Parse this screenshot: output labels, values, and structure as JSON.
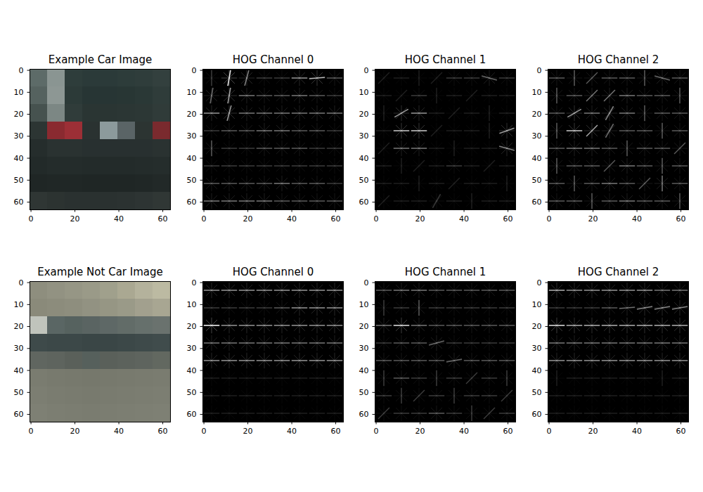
{
  "chart_data": [
    {
      "type": "image",
      "title": "Example Car Image",
      "xlim": [
        -0.5,
        63.5
      ],
      "ylim": [
        63.5,
        -0.5
      ],
      "xticks": [
        0,
        20,
        40,
        60
      ],
      "yticks": [
        0,
        10,
        20,
        30,
        40,
        50,
        60
      ],
      "cells": [
        [
          "#5d6b68",
          "#8a9592",
          "#2e3d3b",
          "#2b3a39",
          "#2b3a39",
          "#2d3c3a",
          "#2f3d3b",
          "#33403e"
        ],
        [
          "#55625f",
          "#8d9794",
          "#2c3a38",
          "#273534",
          "#273534",
          "#283634",
          "#2a3836",
          "#2f3c3a"
        ],
        [
          "#46524f",
          "#7c8784",
          "#303c3a",
          "#2a3533",
          "#2a3533",
          "#2b3634",
          "#2c3735",
          "#303b39"
        ],
        [
          "#2c3533",
          "#8a2a30",
          "#9c2f36",
          "#2a3231",
          "#8c9a9c",
          "#5a6466",
          "#2c3432",
          "#7a2a2e"
        ],
        [
          "#252d2c",
          "#2a3231",
          "#2a3231",
          "#283030",
          "#283030",
          "#283030",
          "#283030",
          "#2a3231"
        ],
        [
          "#222a29",
          "#242c2b",
          "#242c2b",
          "#232b2a",
          "#232b2a",
          "#232b2a",
          "#242c2b",
          "#252d2c"
        ],
        [
          "#1f2625",
          "#202726",
          "#202726",
          "#1f2625",
          "#1f2625",
          "#1f2625",
          "#202726",
          "#222928"
        ],
        [
          "#2f3634",
          "#2c3331",
          "#2a3130",
          "#2a3130",
          "#2a3130",
          "#2b3231",
          "#2d3433",
          "#303735"
        ]
      ]
    },
    {
      "type": "hog",
      "title": "HOG Channel 0",
      "xlim": [
        -0.5,
        63.5
      ],
      "ylim": [
        63.5,
        -0.5
      ],
      "xticks": [
        0,
        20,
        40,
        60
      ],
      "yticks": [
        0,
        10,
        20,
        30,
        40,
        50,
        60
      ],
      "magnitude": [
        [
          0.2,
          0.9,
          0.5,
          0.2,
          0.2,
          0.5,
          0.7,
          0.3
        ],
        [
          0.4,
          0.6,
          0.4,
          0.3,
          0.3,
          0.4,
          0.3,
          0.2
        ],
        [
          0.5,
          0.6,
          0.4,
          0.4,
          0.4,
          0.4,
          0.4,
          0.4
        ],
        [
          0.2,
          0.3,
          0.3,
          0.4,
          0.4,
          0.3,
          0.3,
          0.2
        ],
        [
          0.3,
          0.2,
          0.2,
          0.3,
          0.3,
          0.3,
          0.2,
          0.2
        ],
        [
          0.2,
          0.2,
          0.2,
          0.2,
          0.2,
          0.2,
          0.2,
          0.2
        ],
        [
          0.3,
          0.3,
          0.3,
          0.3,
          0.4,
          0.3,
          0.3,
          0.2
        ],
        [
          0.4,
          0.4,
          0.4,
          0.4,
          0.3,
          0.3,
          0.3,
          0.3
        ]
      ],
      "angle": [
        [
          90,
          80,
          75,
          0,
          0,
          0,
          5,
          0
        ],
        [
          80,
          80,
          0,
          0,
          0,
          0,
          0,
          0
        ],
        [
          0,
          75,
          0,
          0,
          0,
          0,
          0,
          0
        ],
        [
          0,
          0,
          0,
          0,
          0,
          0,
          0,
          0
        ],
        [
          90,
          0,
          0,
          0,
          0,
          0,
          0,
          0
        ],
        [
          0,
          0,
          0,
          0,
          0,
          0,
          0,
          0
        ],
        [
          0,
          0,
          0,
          0,
          0,
          0,
          0,
          0
        ],
        [
          0,
          0,
          0,
          0,
          0,
          0,
          0,
          0
        ]
      ]
    },
    {
      "type": "hog",
      "title": "HOG Channel 1",
      "xlim": [
        -0.5,
        63.5
      ],
      "ylim": [
        63.5,
        -0.5
      ],
      "xticks": [
        0,
        20,
        40,
        60
      ],
      "yticks": [
        0,
        10,
        20,
        30,
        40,
        50,
        60
      ],
      "magnitude": [
        [
          0.1,
          0.1,
          0.1,
          0.1,
          0.2,
          0.2,
          0.4,
          0.2
        ],
        [
          0.1,
          0.1,
          0.2,
          0.1,
          0.1,
          0.1,
          0.1,
          0.1
        ],
        [
          0.1,
          0.6,
          0.5,
          0.1,
          0.1,
          0.1,
          0.1,
          0.1
        ],
        [
          0.1,
          0.7,
          0.7,
          0.1,
          0.1,
          0.1,
          0.1,
          0.6
        ],
        [
          0.1,
          0.4,
          0.4,
          0.1,
          0.1,
          0.1,
          0.1,
          0.5
        ],
        [
          0.1,
          0.1,
          0.1,
          0.1,
          0.2,
          0.1,
          0.1,
          0.1
        ],
        [
          0.1,
          0.1,
          0.1,
          0.1,
          0.1,
          0.1,
          0.1,
          0.1
        ],
        [
          0.1,
          0.1,
          0.1,
          0.2,
          0.1,
          0.1,
          0.1,
          0.1
        ]
      ],
      "angle": [
        [
          45,
          0,
          90,
          45,
          0,
          0,
          -15,
          0
        ],
        [
          0,
          45,
          0,
          90,
          0,
          45,
          0,
          0
        ],
        [
          90,
          30,
          0,
          0,
          45,
          0,
          90,
          0
        ],
        [
          0,
          0,
          0,
          45,
          0,
          0,
          90,
          20
        ],
        [
          45,
          0,
          0,
          0,
          90,
          0,
          0,
          -15
        ],
        [
          0,
          90,
          45,
          0,
          0,
          0,
          45,
          0
        ],
        [
          0,
          0,
          90,
          0,
          45,
          0,
          0,
          90
        ],
        [
          45,
          0,
          0,
          60,
          0,
          90,
          0,
          0
        ]
      ]
    },
    {
      "type": "hog",
      "title": "HOG Channel 2",
      "xlim": [
        -0.5,
        63.5
      ],
      "ylim": [
        63.5,
        -0.5
      ],
      "xticks": [
        0,
        20,
        40,
        60
      ],
      "yticks": [
        0,
        10,
        20,
        30,
        40,
        50,
        60
      ],
      "magnitude": [
        [
          0.3,
          0.3,
          0.3,
          0.3,
          0.3,
          0.3,
          0.4,
          0.3
        ],
        [
          0.3,
          0.3,
          0.4,
          0.4,
          0.4,
          0.3,
          0.3,
          0.3
        ],
        [
          0.3,
          0.6,
          0.4,
          0.5,
          0.4,
          0.3,
          0.3,
          0.3
        ],
        [
          0.3,
          0.7,
          0.6,
          0.4,
          0.3,
          0.3,
          0.3,
          0.3
        ],
        [
          0.3,
          0.4,
          0.4,
          0.3,
          0.3,
          0.3,
          0.3,
          0.3
        ],
        [
          0.3,
          0.3,
          0.3,
          0.3,
          0.4,
          0.3,
          0.3,
          0.3
        ],
        [
          0.3,
          0.3,
          0.3,
          0.4,
          0.3,
          0.3,
          0.4,
          0.3
        ],
        [
          0.3,
          0.3,
          0.3,
          0.3,
          0.4,
          0.3,
          0.3,
          0.3
        ]
      ],
      "angle": [
        [
          0,
          90,
          45,
          0,
          0,
          90,
          -15,
          0
        ],
        [
          90,
          0,
          45,
          45,
          0,
          0,
          0,
          90
        ],
        [
          0,
          30,
          0,
          60,
          0,
          90,
          0,
          0
        ],
        [
          90,
          0,
          45,
          60,
          0,
          0,
          90,
          0
        ],
        [
          0,
          0,
          0,
          0,
          90,
          0,
          0,
          45
        ],
        [
          90,
          0,
          0,
          45,
          0,
          0,
          90,
          0
        ],
        [
          0,
          90,
          0,
          0,
          0,
          45,
          90,
          0
        ],
        [
          0,
          0,
          90,
          0,
          0,
          0,
          0,
          90
        ]
      ]
    },
    {
      "type": "image",
      "title": "Example Not Car Image",
      "xlim": [
        -0.5,
        63.5
      ],
      "ylim": [
        63.5,
        -0.5
      ],
      "xticks": [
        0,
        20,
        40,
        60
      ],
      "yticks": [
        0,
        10,
        20,
        30,
        40,
        50,
        60
      ],
      "cells": [
        [
          "#8e8e7e",
          "#929282",
          "#969685",
          "#9a9a88",
          "#a0a08c",
          "#aaa892",
          "#b4b29c",
          "#bcbaa2"
        ],
        [
          "#8a8a7a",
          "#8c8c7c",
          "#8e8e7e",
          "#929282",
          "#969684",
          "#9a9a88",
          "#a2a08e",
          "#a8a692"
        ],
        [
          "#c0c4bc",
          "#5a6664",
          "#56625f",
          "#5a6462",
          "#5e6866",
          "#626c68",
          "#66706c",
          "#6a726e"
        ],
        [
          "#3e4a4a",
          "#3c4848",
          "#3c4848",
          "#3a4646",
          "#3a4646",
          "#3c4848",
          "#3e4a4a",
          "#404c4c"
        ],
        [
          "#606660",
          "#5e645e",
          "#5a605a",
          "#56605c",
          "#5a605a",
          "#5c625c",
          "#5e645e",
          "#626860"
        ],
        [
          "#7a7c70",
          "#787a6e",
          "#77796d",
          "#76786c",
          "#77796d",
          "#787a6e",
          "#797b6f",
          "#7a7c70"
        ],
        [
          "#7c7e72",
          "#7a7c70",
          "#797b6f",
          "#787a6e",
          "#797b6f",
          "#7a7c70",
          "#7b7d71",
          "#7c7e72"
        ],
        [
          "#7e8074",
          "#7c7e72",
          "#7b7d71",
          "#7a7c70",
          "#7b7d71",
          "#7c7e72",
          "#7d7f73",
          "#7e8074"
        ]
      ]
    },
    {
      "type": "hog",
      "title": "HOG Channel 0",
      "xlim": [
        -0.5,
        63.5
      ],
      "ylim": [
        63.5,
        -0.5
      ],
      "xticks": [
        0,
        20,
        40,
        60
      ],
      "yticks": [
        0,
        10,
        20,
        30,
        40,
        50,
        60
      ],
      "magnitude": [
        [
          0.5,
          0.5,
          0.5,
          0.5,
          0.5,
          0.5,
          0.5,
          0.5
        ],
        [
          0.2,
          0.2,
          0.2,
          0.2,
          0.3,
          0.5,
          0.5,
          0.5
        ],
        [
          0.9,
          0.5,
          0.5,
          0.5,
          0.5,
          0.5,
          0.5,
          0.5
        ],
        [
          0.4,
          0.4,
          0.4,
          0.4,
          0.4,
          0.4,
          0.4,
          0.4
        ],
        [
          0.5,
          0.5,
          0.5,
          0.5,
          0.5,
          0.5,
          0.5,
          0.5
        ],
        [
          0.1,
          0.1,
          0.1,
          0.1,
          0.1,
          0.1,
          0.1,
          0.1
        ],
        [
          0.1,
          0.1,
          0.1,
          0.1,
          0.1,
          0.1,
          0.1,
          0.1
        ],
        [
          0.1,
          0.1,
          0.1,
          0.1,
          0.1,
          0.1,
          0.1,
          0.1
        ]
      ],
      "angle": [
        [
          0,
          0,
          0,
          0,
          0,
          0,
          0,
          0
        ],
        [
          0,
          0,
          0,
          0,
          0,
          0,
          0,
          0
        ],
        [
          0,
          0,
          0,
          0,
          0,
          0,
          0,
          0
        ],
        [
          0,
          0,
          0,
          0,
          0,
          0,
          0,
          0
        ],
        [
          0,
          0,
          0,
          0,
          0,
          0,
          0,
          0
        ],
        [
          0,
          0,
          0,
          0,
          0,
          0,
          0,
          0
        ],
        [
          0,
          0,
          0,
          0,
          0,
          0,
          0,
          0
        ],
        [
          0,
          0,
          0,
          0,
          0,
          0,
          0,
          0
        ]
      ]
    },
    {
      "type": "hog",
      "title": "HOG Channel 1",
      "xlim": [
        -0.5,
        63.5
      ],
      "ylim": [
        63.5,
        -0.5
      ],
      "xticks": [
        0,
        20,
        40,
        60
      ],
      "yticks": [
        0,
        10,
        20,
        30,
        40,
        50,
        60
      ],
      "magnitude": [
        [
          0.3,
          0.4,
          0.4,
          0.3,
          0.3,
          0.3,
          0.3,
          0.3
        ],
        [
          0.2,
          0.2,
          0.3,
          0.2,
          0.2,
          0.2,
          0.2,
          0.2
        ],
        [
          0.4,
          0.8,
          0.4,
          0.3,
          0.3,
          0.3,
          0.3,
          0.3
        ],
        [
          0.2,
          0.3,
          0.3,
          0.4,
          0.2,
          0.2,
          0.2,
          0.2
        ],
        [
          0.3,
          0.3,
          0.3,
          0.3,
          0.4,
          0.3,
          0.3,
          0.3
        ],
        [
          0.2,
          0.3,
          0.2,
          0.2,
          0.2,
          0.2,
          0.2,
          0.2
        ],
        [
          0.2,
          0.2,
          0.2,
          0.2,
          0.2,
          0.2,
          0.2,
          0.2
        ],
        [
          0.2,
          0.2,
          0.2,
          0.3,
          0.2,
          0.2,
          0.2,
          0.2
        ]
      ],
      "angle": [
        [
          0,
          0,
          0,
          0,
          0,
          0,
          0,
          0
        ],
        [
          90,
          0,
          90,
          0,
          0,
          0,
          0,
          0
        ],
        [
          0,
          0,
          0,
          0,
          0,
          0,
          0,
          0
        ],
        [
          0,
          0,
          0,
          15,
          0,
          0,
          0,
          0
        ],
        [
          0,
          0,
          0,
          0,
          10,
          0,
          0,
          0
        ],
        [
          90,
          0,
          0,
          90,
          0,
          45,
          0,
          90
        ],
        [
          0,
          90,
          45,
          0,
          90,
          0,
          0,
          45
        ],
        [
          45,
          0,
          0,
          0,
          0,
          90,
          45,
          0
        ]
      ]
    },
    {
      "type": "hog",
      "title": "HOG Channel 2",
      "xlim": [
        -0.5,
        63.5
      ],
      "ylim": [
        63.5,
        -0.5
      ],
      "xticks": [
        0,
        20,
        40,
        60
      ],
      "yticks": [
        0,
        10,
        20,
        30,
        40,
        50,
        60
      ],
      "magnitude": [
        [
          0.6,
          0.5,
          0.5,
          0.5,
          0.5,
          0.5,
          0.4,
          0.4
        ],
        [
          0.2,
          0.2,
          0.2,
          0.3,
          0.4,
          0.5,
          0.5,
          0.5
        ],
        [
          0.8,
          0.6,
          0.6,
          0.6,
          0.6,
          0.6,
          0.6,
          0.6
        ],
        [
          0.4,
          0.4,
          0.4,
          0.4,
          0.4,
          0.4,
          0.4,
          0.4
        ],
        [
          0.5,
          0.5,
          0.5,
          0.5,
          0.5,
          0.5,
          0.5,
          0.5
        ],
        [
          0.1,
          0.1,
          0.1,
          0.1,
          0.1,
          0.1,
          0.1,
          0.1
        ],
        [
          0.1,
          0.1,
          0.1,
          0.1,
          0.1,
          0.1,
          0.1,
          0.1
        ],
        [
          0.1,
          0.1,
          0.1,
          0.1,
          0.1,
          0.1,
          0.1,
          0.1
        ]
      ],
      "angle": [
        [
          0,
          0,
          0,
          0,
          0,
          0,
          0,
          0
        ],
        [
          0,
          0,
          0,
          0,
          5,
          10,
          10,
          10
        ],
        [
          0,
          0,
          0,
          0,
          0,
          0,
          0,
          0
        ],
        [
          0,
          0,
          0,
          0,
          0,
          0,
          0,
          0
        ],
        [
          0,
          0,
          0,
          0,
          0,
          0,
          0,
          0
        ],
        [
          90,
          0,
          0,
          0,
          0,
          0,
          90,
          0
        ],
        [
          0,
          0,
          0,
          0,
          0,
          0,
          0,
          0
        ],
        [
          0,
          0,
          0,
          0,
          0,
          0,
          0,
          0
        ]
      ]
    }
  ]
}
